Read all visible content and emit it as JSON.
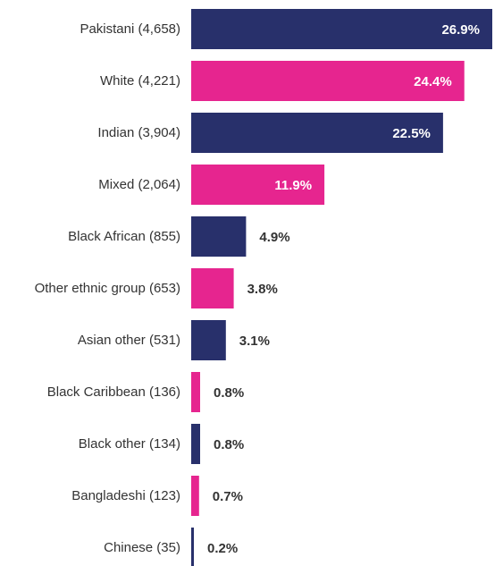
{
  "chart_data": {
    "type": "bar",
    "orientation": "horizontal",
    "title": "",
    "xlabel": "",
    "ylabel": "",
    "xlim": [
      0,
      26.9
    ],
    "grid": false,
    "legend": "none",
    "colors": [
      "#28306b",
      "#e6258f"
    ],
    "categories": [
      "Pakistani (4,658)",
      "White (4,221)",
      "Indian (3,904)",
      "Mixed (2,064)",
      "Black African (855)",
      "Other ethnic group (653)",
      "Asian other (531)",
      "Black Caribbean (136)",
      "Black other (134)",
      "Bangladeshi (123)",
      "Chinese (35)"
    ],
    "values": [
      26.9,
      24.4,
      22.5,
      11.9,
      4.9,
      3.8,
      3.1,
      0.8,
      0.8,
      0.7,
      0.2
    ],
    "value_labels": [
      "26.9%",
      "24.4%",
      "22.5%",
      "11.9%",
      "4.9%",
      "3.8%",
      "3.1%",
      "0.8%",
      "0.8%",
      "0.7%",
      "0.2%"
    ]
  }
}
